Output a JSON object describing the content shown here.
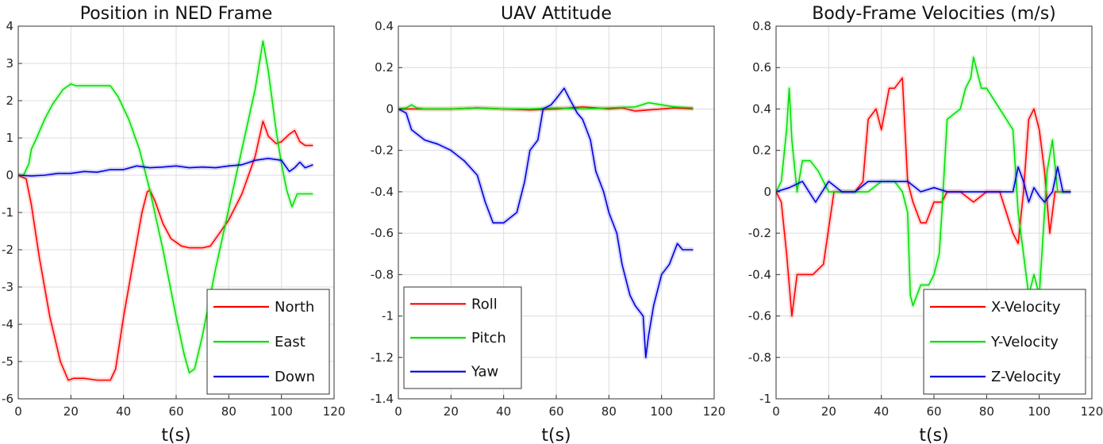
{
  "chart_data": [
    {
      "type": "line",
      "title": "Position in NED Frame",
      "xlabel": "t(s)",
      "ylabel": "",
      "xlim": [
        0,
        120
      ],
      "ylim": [
        -6,
        4
      ],
      "xticks": [
        0,
        20,
        40,
        60,
        80,
        100,
        120
      ],
      "yticks": [
        -6,
        -5,
        -4,
        -3,
        -2,
        -1,
        0,
        1,
        2,
        3,
        4
      ],
      "grid": true,
      "legend_position": "bottom-right",
      "series": [
        {
          "name": "North",
          "color": "#ff0000",
          "x": [
            0,
            3,
            5,
            8,
            12,
            16,
            19,
            21,
            25,
            30,
            35,
            37,
            40,
            44,
            47,
            49,
            50,
            52,
            55,
            58,
            62,
            65,
            70,
            73,
            76,
            80,
            85,
            90,
            93,
            95,
            98,
            100,
            103,
            105,
            107,
            109,
            112
          ],
          "y": [
            0,
            -0.1,
            -0.8,
            -2.2,
            -3.8,
            -5,
            -5.5,
            -5.45,
            -5.45,
            -5.5,
            -5.5,
            -5.2,
            -3.8,
            -2.2,
            -1,
            -0.45,
            -0.4,
            -0.7,
            -1.3,
            -1.7,
            -1.9,
            -1.95,
            -1.95,
            -1.9,
            -1.6,
            -1.2,
            -0.5,
            0.5,
            1.45,
            1.05,
            0.85,
            0.9,
            1.1,
            1.2,
            0.9,
            0.8,
            0.8
          ]
        },
        {
          "name": "East",
          "color": "#00e000",
          "x": [
            0,
            2,
            4,
            5,
            7,
            10,
            13,
            17,
            20,
            22,
            25,
            30,
            35,
            38,
            42,
            46,
            50,
            55,
            60,
            63,
            65,
            67,
            70,
            75,
            80,
            85,
            90,
            93,
            95,
            98,
            100,
            102,
            104,
            106,
            108,
            112
          ],
          "y": [
            0,
            0,
            0.3,
            0.7,
            1,
            1.5,
            1.9,
            2.3,
            2.45,
            2.4,
            2.4,
            2.4,
            2.4,
            2.1,
            1.5,
            0.7,
            -0.4,
            -2,
            -3.8,
            -4.8,
            -5.3,
            -5.2,
            -4.3,
            -2.5,
            -0.9,
            0.7,
            2.3,
            3.6,
            2.8,
            1.2,
            0.3,
            -0.4,
            -0.85,
            -0.5,
            -0.5,
            -0.5
          ]
        },
        {
          "name": "Down",
          "color": "#0000dd",
          "x": [
            0,
            5,
            10,
            15,
            20,
            25,
            30,
            35,
            40,
            45,
            50,
            55,
            60,
            65,
            70,
            75,
            80,
            85,
            90,
            95,
            100,
            103,
            105,
            107,
            109,
            112
          ],
          "y": [
            0,
            -0.02,
            0,
            0.05,
            0.05,
            0.1,
            0.08,
            0.15,
            0.15,
            0.25,
            0.2,
            0.22,
            0.25,
            0.2,
            0.22,
            0.2,
            0.25,
            0.28,
            0.4,
            0.45,
            0.4,
            0.1,
            0.2,
            0.35,
            0.2,
            0.28
          ]
        }
      ]
    },
    {
      "type": "line",
      "title": "UAV Attitude",
      "xlabel": "t(s)",
      "ylabel": "",
      "xlim": [
        0,
        120
      ],
      "ylim": [
        -1.4,
        0.4
      ],
      "xticks": [
        0,
        20,
        40,
        60,
        80,
        100,
        120
      ],
      "yticks": [
        -1.4,
        -1.2,
        -1,
        -0.8,
        -0.6,
        -0.4,
        -0.2,
        0,
        0.2,
        0.4
      ],
      "grid": true,
      "legend_position": "bottom-left",
      "series": [
        {
          "name": "Roll",
          "color": "#ff0000",
          "x": [
            0,
            5,
            10,
            20,
            30,
            40,
            50,
            60,
            70,
            75,
            80,
            85,
            90,
            95,
            100,
            105,
            112
          ],
          "y": [
            0,
            0,
            0,
            0,
            0.005,
            0,
            -0.005,
            0,
            0.01,
            0.005,
            0,
            0.005,
            -0.01,
            -0.005,
            0,
            0.005,
            0
          ]
        },
        {
          "name": "Pitch",
          "color": "#00e000",
          "x": [
            0,
            3,
            5,
            7,
            10,
            20,
            30,
            40,
            50,
            60,
            70,
            80,
            90,
            95,
            100,
            105,
            112
          ],
          "y": [
            0,
            0.005,
            0.02,
            0.005,
            0,
            0,
            0.005,
            0,
            0,
            0.005,
            0,
            0.005,
            0.01,
            0.03,
            0.02,
            0.01,
            0.005
          ]
        },
        {
          "name": "Yaw",
          "color": "#0000dd",
          "x": [
            0,
            3,
            5,
            8,
            10,
            15,
            20,
            25,
            30,
            33,
            36,
            40,
            45,
            48,
            50,
            53,
            55,
            58,
            60,
            63,
            65,
            68,
            70,
            73,
            75,
            78,
            80,
            83,
            85,
            88,
            90,
            93,
            94,
            95,
            97,
            100,
            103,
            106,
            108,
            112
          ],
          "y": [
            0,
            -0.02,
            -0.1,
            -0.13,
            -0.15,
            -0.17,
            -0.2,
            -0.25,
            -0.32,
            -0.45,
            -0.55,
            -0.55,
            -0.5,
            -0.35,
            -0.2,
            -0.15,
            0,
            0.02,
            0.05,
            0.1,
            0.05,
            -0.02,
            -0.05,
            -0.15,
            -0.3,
            -0.4,
            -0.5,
            -0.6,
            -0.75,
            -0.9,
            -0.95,
            -1.0,
            -1.2,
            -1.1,
            -0.95,
            -0.8,
            -0.75,
            -0.65,
            -0.68,
            -0.68
          ]
        }
      ]
    },
    {
      "type": "line",
      "title": "Body-Frame Velocities (m/s)",
      "xlabel": "t(s)",
      "ylabel": "",
      "xlim": [
        0,
        120
      ],
      "ylim": [
        -1,
        0.8
      ],
      "xticks": [
        0,
        20,
        40,
        60,
        80,
        100,
        120
      ],
      "yticks": [
        -1,
        -0.8,
        -0.6,
        -0.4,
        -0.2,
        0,
        0.2,
        0.4,
        0.6,
        0.8
      ],
      "grid": true,
      "legend_position": "bottom-right",
      "series": [
        {
          "name": "X-Velocity",
          "color": "#ff0000",
          "x": [
            0,
            2,
            4,
            6,
            8,
            10,
            14,
            18,
            22,
            26,
            30,
            33,
            35,
            38,
            40,
            43,
            45,
            48,
            50,
            52,
            55,
            57,
            60,
            63,
            65,
            70,
            75,
            80,
            85,
            90,
            92,
            94,
            96,
            98,
            100,
            102,
            104,
            106,
            108,
            112
          ],
          "y": [
            0,
            -0.05,
            -0.3,
            -0.6,
            -0.4,
            -0.4,
            -0.4,
            -0.35,
            0,
            0,
            0,
            0.05,
            0.35,
            0.4,
            0.3,
            0.5,
            0.5,
            0.55,
            0.05,
            -0.05,
            -0.15,
            -0.15,
            -0.05,
            -0.05,
            0,
            0,
            -0.05,
            0,
            0,
            -0.2,
            -0.25,
            0,
            0.35,
            0.4,
            0.3,
            0.1,
            -0.2,
            0,
            0,
            0
          ]
        },
        {
          "name": "Y-Velocity",
          "color": "#00e000",
          "x": [
            0,
            2,
            4,
            5,
            6,
            8,
            10,
            13,
            16,
            20,
            25,
            30,
            35,
            40,
            45,
            48,
            50,
            51,
            52,
            55,
            58,
            60,
            62,
            63,
            65,
            70,
            72,
            74,
            75,
            78,
            80,
            85,
            90,
            92,
            94,
            96,
            98,
            100,
            103,
            105,
            107,
            112
          ],
          "y": [
            0,
            0.05,
            0.3,
            0.5,
            0.25,
            0,
            0.15,
            0.15,
            0.1,
            0,
            0,
            0,
            0,
            0.05,
            0.05,
            0,
            -0.1,
            -0.5,
            -0.55,
            -0.45,
            -0.45,
            -0.4,
            -0.3,
            -0.1,
            0.35,
            0.4,
            0.5,
            0.55,
            0.65,
            0.5,
            0.5,
            0.4,
            0.3,
            -0.1,
            -0.3,
            -0.5,
            -0.4,
            -0.5,
            0.1,
            0.25,
            0,
            0
          ]
        },
        {
          "name": "Z-Velocity",
          "color": "#0000dd",
          "x": [
            0,
            5,
            10,
            15,
            20,
            25,
            30,
            35,
            40,
            45,
            50,
            55,
            60,
            65,
            70,
            75,
            80,
            85,
            90,
            92,
            94,
            96,
            98,
            100,
            102,
            105,
            107,
            109,
            112
          ],
          "y": [
            0,
            0.02,
            0.05,
            -0.05,
            0.05,
            0,
            0,
            0.05,
            0.05,
            0.05,
            0.05,
            0,
            0.02,
            0,
            0,
            0,
            0,
            0,
            0,
            0.12,
            0.05,
            -0.05,
            0.02,
            -0.02,
            -0.05,
            0,
            0.12,
            0,
            0
          ]
        }
      ]
    }
  ]
}
